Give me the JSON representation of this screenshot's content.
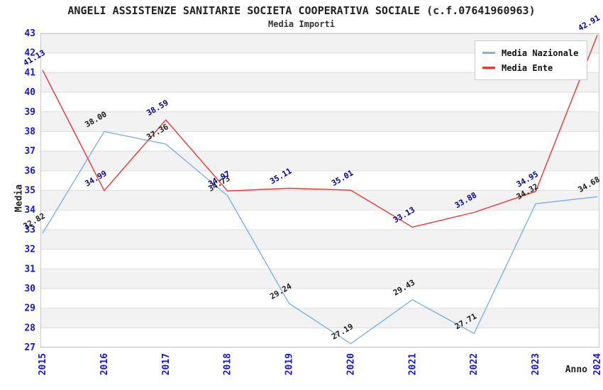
{
  "header": {
    "title": "ANGELI ASSISTENZE SANITARIE SOCIETA COOPERATIVA SOCIALE (c.f.07641960963)",
    "subtitle": "Media Importi"
  },
  "colors": {
    "tick_label": "#1414dd",
    "band_fill": "#f2f2f2",
    "grid_line": "#dddddd",
    "plot_border": "#c8c8c8",
    "background": "#ffffff",
    "national_line": "#7db2e6",
    "ente_line": "#ee3333",
    "national_value_label": "#1a1a1a",
    "ente_value_label": "#000099"
  },
  "chart_data": {
    "type": "line",
    "title": "ANGELI ASSISTENZE SANITARIE SOCIETA COOPERATIVA SOCIALE (c.f.07641960963)",
    "subtitle": "Media Importi",
    "xlabel": "Anno",
    "ylabel": "Media",
    "categories": [
      "2015",
      "2016",
      "2017",
      "2018",
      "2019",
      "2020",
      "2021",
      "2022",
      "2023",
      "2024"
    ],
    "ylim": [
      27,
      43
    ],
    "ytick_step": 1,
    "grid": "horizontal alternating bands, gray band when lower integer is even",
    "legend_position": "top-right",
    "series": [
      {
        "name": "Media Nazionale",
        "color": "#7db2e6",
        "label_color": "#1a1a1a",
        "values": [
          32.82,
          38.0,
          37.36,
          34.73,
          29.24,
          27.19,
          29.43,
          27.71,
          34.32,
          34.68
        ]
      },
      {
        "name": "Media Ente",
        "color": "#ee3333",
        "label_color": "#000099",
        "values": [
          41.13,
          34.99,
          38.59,
          34.97,
          35.11,
          35.01,
          33.13,
          33.88,
          34.95,
          42.91
        ]
      }
    ]
  }
}
